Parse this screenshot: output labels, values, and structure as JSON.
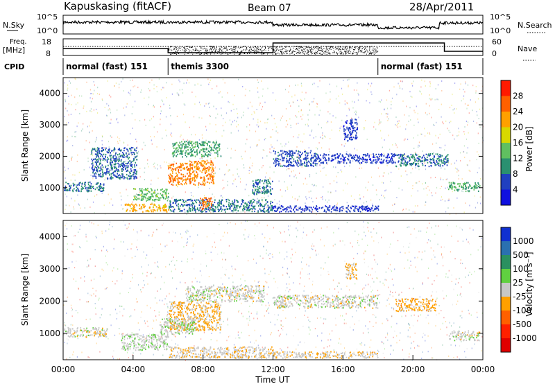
{
  "header": {
    "station": "Kapuskasing (fitACF)",
    "beam": "Beam 07",
    "date": "28/Apr/2011"
  },
  "status_panel": {
    "nsky_label": "N.Sky",
    "nsky_ticks": [
      "10^5",
      "10^0"
    ],
    "nsearch_label": "N.Search",
    "nsearch_ticks": [
      "10^5",
      "10^0"
    ],
    "freq_label_1": "Freq.",
    "freq_label_2": "[MHz]",
    "freq_ticks": [
      "18",
      "8"
    ],
    "nave_label": "Nave",
    "nave_ticks": [
      "60",
      "0"
    ],
    "cpid_label": "CPID",
    "cpid_segments": [
      {
        "label": "normal (fast) 151",
        "start": 0,
        "end": 6
      },
      {
        "label": "themis 3300",
        "start": 6,
        "end": 18
      },
      {
        "label": "normal (fast) 151",
        "start": 18,
        "end": 24
      }
    ]
  },
  "axes": {
    "ylabel": "Slant Range [km]",
    "xlabel": "Time UT",
    "y_ticks": [
      "1000",
      "2000",
      "3000",
      "4000"
    ],
    "x_ticks": [
      "00:00",
      "04:00",
      "08:00",
      "12:00",
      "16:00",
      "20:00",
      "00:00"
    ]
  },
  "power_colorbar": {
    "label": "Power [dB]",
    "ticks": [
      "28",
      "24",
      "20",
      "16",
      "12",
      "8",
      "4"
    ],
    "colors": [
      "#ff1a00",
      "#ff6000",
      "#ffa000",
      "#d8d800",
      "#60c060",
      "#2a9070",
      "#2040c0",
      "#1010e0"
    ]
  },
  "velocity_colorbar": {
    "label": "Velocity [m s⁻¹]",
    "ticks": [
      "1000",
      "500",
      "100",
      "25",
      "-25",
      "-100",
      "-500",
      "-1000"
    ],
    "colors": [
      "#1030d0",
      "#2a70b0",
      "#2a9060",
      "#60d040",
      "#c8c8c8",
      "#ffa000",
      "#ff6000",
      "#ff2000",
      "#e00000"
    ]
  },
  "chart_data": [
    {
      "type": "heatmap",
      "title": "Power",
      "xlim": [
        0,
        24
      ],
      "ylim": [
        180,
        4500
      ],
      "xlabel": "Time UT",
      "ylabel": "Slant Range [km]",
      "clim": [
        0,
        30
      ],
      "blobs": [
        {
          "t0": 0.0,
          "t1": 2.3,
          "r0": 900,
          "r1": 1200,
          "level": 8
        },
        {
          "t0": 1.6,
          "t1": 4.2,
          "r0": 1300,
          "r1": 2300,
          "level": 7
        },
        {
          "t0": 4.0,
          "t1": 6.0,
          "r0": 600,
          "r1": 1000,
          "level": 13
        },
        {
          "t0": 3.5,
          "t1": 6.0,
          "r0": 250,
          "r1": 500,
          "level": 20
        },
        {
          "t0": 6.0,
          "t1": 7.3,
          "r0": 1100,
          "r1": 1800,
          "level": 23
        },
        {
          "t0": 7.2,
          "t1": 8.6,
          "r0": 1100,
          "r1": 1900,
          "level": 22
        },
        {
          "t0": 6.2,
          "t1": 9.0,
          "r0": 2000,
          "r1": 2500,
          "level": 11
        },
        {
          "t0": 6.0,
          "t1": 12.0,
          "r0": 250,
          "r1": 650,
          "level": 8
        },
        {
          "t0": 7.8,
          "t1": 8.5,
          "r0": 300,
          "r1": 700,
          "level": 24
        },
        {
          "t0": 10.8,
          "t1": 12.0,
          "r0": 800,
          "r1": 1300,
          "level": 8
        },
        {
          "t0": 12.0,
          "t1": 14.5,
          "r0": 1700,
          "r1": 2200,
          "level": 6
        },
        {
          "t0": 14.5,
          "t1": 19.0,
          "r0": 1800,
          "r1": 2100,
          "level": 5
        },
        {
          "t0": 19.0,
          "t1": 22.0,
          "r0": 1700,
          "r1": 2100,
          "level": 8
        },
        {
          "t0": 16.0,
          "t1": 16.8,
          "r0": 2500,
          "r1": 3200,
          "level": 5
        },
        {
          "t0": 22.0,
          "t1": 23.8,
          "r0": 900,
          "r1": 1200,
          "level": 11
        },
        {
          "t0": 12.0,
          "t1": 18.0,
          "r0": 250,
          "r1": 450,
          "level": 5
        }
      ]
    },
    {
      "type": "heatmap",
      "title": "Velocity",
      "xlim": [
        0,
        24
      ],
      "ylim": [
        180,
        4500
      ],
      "xlabel": "Time UT",
      "ylabel": "Slant Range [km]",
      "clim": [
        -1000,
        1000
      ],
      "blobs": [
        {
          "t0": 0.0,
          "t1": 2.5,
          "r0": 900,
          "r1": 1200,
          "level": 0
        },
        {
          "t0": 3.3,
          "t1": 6.0,
          "r0": 500,
          "r1": 1000,
          "level": 60
        },
        {
          "t0": 6.0,
          "t1": 9.0,
          "r0": 1100,
          "r1": 2000,
          "level": -150
        },
        {
          "t0": 5.5,
          "t1": 7.5,
          "r0": 1000,
          "r1": 1500,
          "level": 60
        },
        {
          "t0": 7.0,
          "t1": 11.5,
          "r0": 2000,
          "r1": 2500,
          "level": 0
        },
        {
          "t0": 6.0,
          "t1": 12.0,
          "r0": 250,
          "r1": 600,
          "level": -60
        },
        {
          "t0": 12.0,
          "t1": 18.0,
          "r0": 1800,
          "r1": 2200,
          "level": 0
        },
        {
          "t0": 19.0,
          "t1": 21.3,
          "r0": 1700,
          "r1": 2100,
          "level": -200
        },
        {
          "t0": 16.1,
          "t1": 16.8,
          "r0": 2700,
          "r1": 3200,
          "level": -150
        },
        {
          "t0": 22.0,
          "t1": 23.8,
          "r0": 800,
          "r1": 1100,
          "level": 0
        },
        {
          "t0": 12.0,
          "t1": 18.0,
          "r0": 250,
          "r1": 450,
          "level": -60
        }
      ]
    }
  ]
}
